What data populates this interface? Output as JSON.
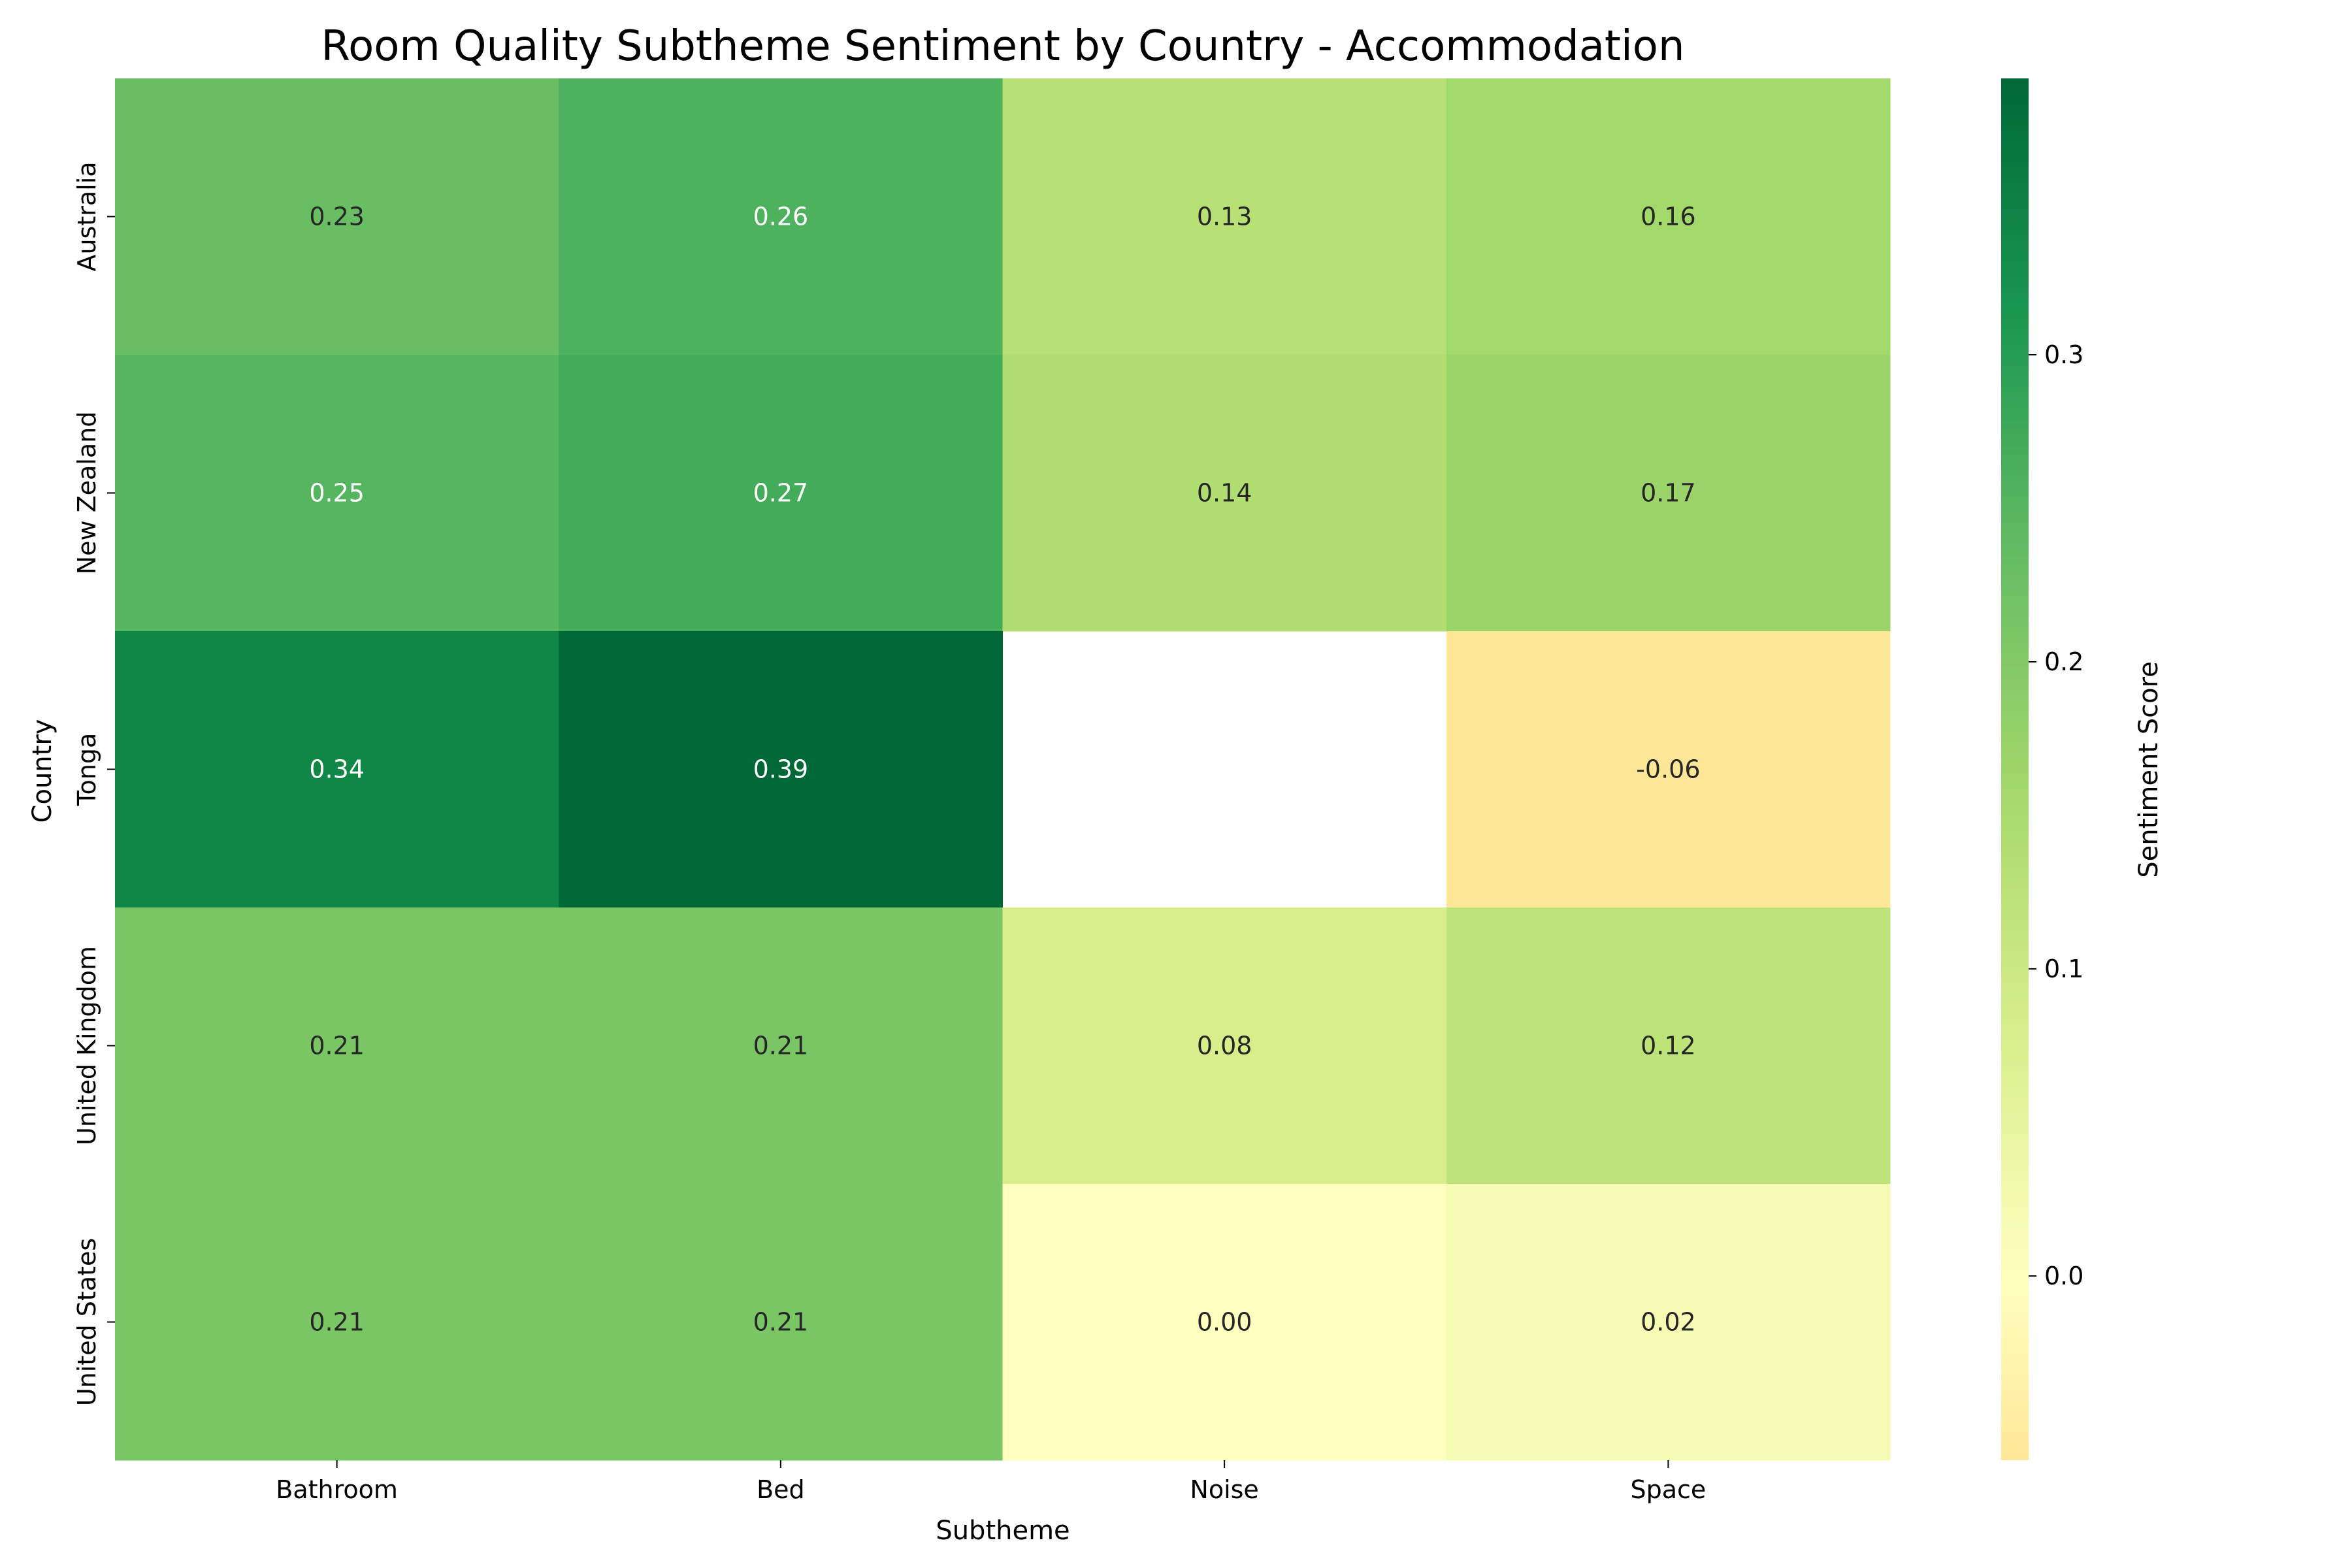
{
  "chart_data": {
    "type": "heatmap",
    "title": "Room Quality Subtheme Sentiment by Country - Accommodation",
    "xlabel": "Subtheme",
    "ylabel": "Country",
    "x_categories": [
      "Bathroom",
      "Bed",
      "Noise",
      "Space"
    ],
    "y_categories": [
      "Australia",
      "New Zealand",
      "Tonga",
      "United Kingdom",
      "United States"
    ],
    "values": [
      [
        0.23,
        0.26,
        0.13,
        0.16
      ],
      [
        0.25,
        0.27,
        0.14,
        0.17
      ],
      [
        0.34,
        0.39,
        null,
        -0.06
      ],
      [
        0.21,
        0.21,
        0.08,
        0.12
      ],
      [
        0.21,
        0.21,
        0.0,
        0.02
      ]
    ],
    "value_labels": [
      [
        "0.23",
        "0.26",
        "0.13",
        "0.16"
      ],
      [
        "0.25",
        "0.27",
        "0.14",
        "0.17"
      ],
      [
        "0.34",
        "0.39",
        "",
        "-0.06"
      ],
      [
        "0.21",
        "0.21",
        "0.08",
        "0.12"
      ],
      [
        "0.21",
        "0.21",
        "0.00",
        "0.02"
      ]
    ],
    "colorbar": {
      "label": "Sentiment Score",
      "range": [
        -0.06,
        0.39
      ],
      "ticks": [
        0.0,
        0.1,
        0.2,
        0.3
      ],
      "tick_labels": [
        "0.0",
        "0.1",
        "0.2",
        "0.3"
      ],
      "colormap": "RdYlGn (centered at 0)"
    },
    "grid": false
  }
}
